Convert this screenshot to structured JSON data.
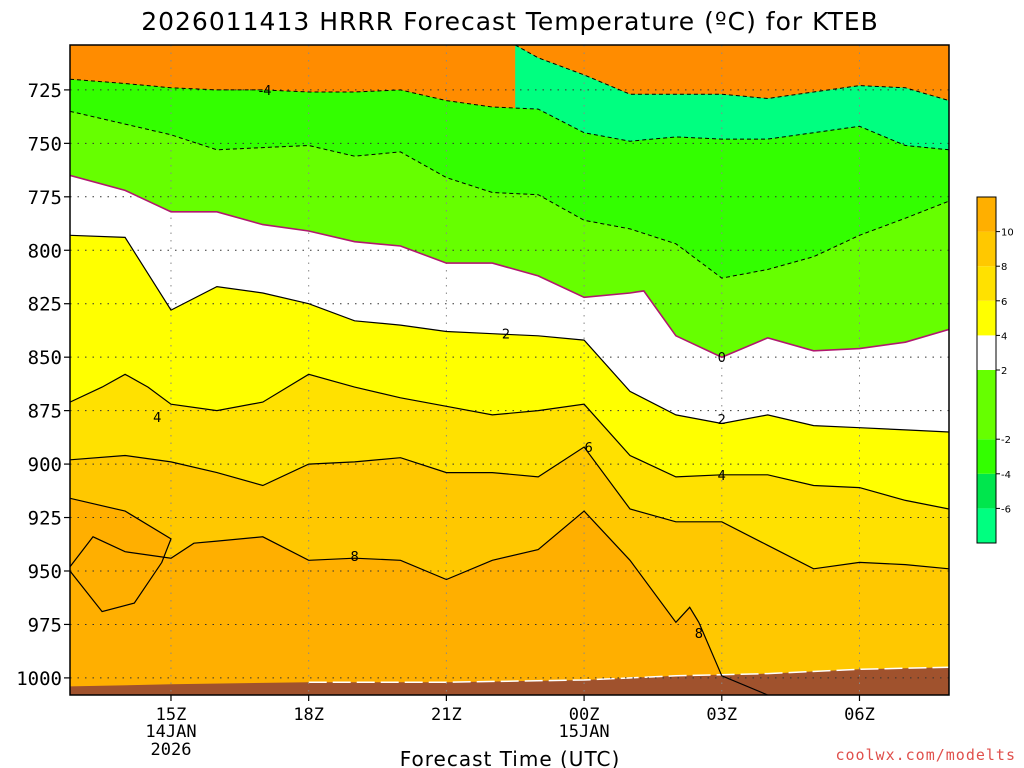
{
  "chart_data": {
    "type": "contour",
    "title": "2026011413 HRRR Forecast Temperature (ºC) for KTEB",
    "xlabel": "Forecast Time (UTC)",
    "ylabel": "",
    "credit": "coolwx.com/modelts",
    "x_ticks": [
      {
        "hour": 2,
        "label": "15Z",
        "label2": "14JAN",
        "label3": "2026"
      },
      {
        "hour": 5,
        "label": "18Z",
        "label2": "",
        "label3": ""
      },
      {
        "hour": 8,
        "label": "21Z",
        "label2": "",
        "label3": ""
      },
      {
        "hour": 11,
        "label": "00Z",
        "label2": "15JAN",
        "label3": ""
      },
      {
        "hour": 14,
        "label": "03Z",
        "label2": "",
        "label3": ""
      },
      {
        "hour": 17,
        "label": "06Z",
        "label2": "",
        "label3": ""
      }
    ],
    "xlim": [
      -0.2,
      18.95
    ],
    "ylim": [
      1008,
      704
    ],
    "y_scale": "linear",
    "y_ticks": [
      725,
      750,
      775,
      800,
      825,
      850,
      875,
      900,
      925,
      950,
      975,
      1000
    ],
    "grid": true,
    "colorbar": {
      "levels": [
        -8,
        -6,
        -4,
        -2,
        2,
        4,
        6,
        8,
        10,
        12
      ],
      "tick_labels": [
        "-6",
        "-4",
        "-2",
        "2",
        "4",
        "6",
        "8",
        "10"
      ],
      "tick_values": [
        -6,
        -4,
        -2,
        2,
        4,
        6,
        8,
        10
      ],
      "colors": [
        "#00ff80",
        "#00e64d",
        "#33ff00",
        "#66ff00",
        "#ffffff",
        "#ffff00",
        "#ffe100",
        "#ffc800",
        "#ffaf00",
        "#ff8c00"
      ]
    },
    "contours": [
      {
        "level": -6,
        "band_color": "#00ff80",
        "style": "dashed",
        "points": [
          [
            9.5,
            704
          ],
          [
            10,
            710
          ],
          [
            11,
            718
          ],
          [
            12,
            727
          ],
          [
            13,
            727
          ],
          [
            14,
            727
          ],
          [
            15,
            729
          ],
          [
            16,
            726
          ],
          [
            17,
            723
          ],
          [
            18,
            724
          ],
          [
            18.95,
            730
          ]
        ]
      },
      {
        "level": -4,
        "band_color": "#33ff00",
        "style": "dashed",
        "points": [
          [
            -0.2,
            720
          ],
          [
            1,
            722
          ],
          [
            2,
            724
          ],
          [
            3,
            725
          ],
          [
            4,
            725
          ],
          [
            5,
            726
          ],
          [
            6,
            726
          ],
          [
            7,
            725
          ],
          [
            8,
            730
          ],
          [
            9,
            733
          ],
          [
            10,
            734
          ],
          [
            11,
            745
          ],
          [
            12,
            749
          ],
          [
            13,
            747
          ],
          [
            14,
            748
          ],
          [
            15,
            748
          ],
          [
            16,
            745
          ],
          [
            17,
            742
          ],
          [
            18,
            751
          ],
          [
            18.95,
            753
          ]
        ]
      },
      {
        "level": -2,
        "band_color": "#66ff00",
        "style": "dashed",
        "points": [
          [
            -0.2,
            735
          ],
          [
            1,
            741
          ],
          [
            2,
            746
          ],
          [
            3,
            753
          ],
          [
            4,
            752
          ],
          [
            5,
            751
          ],
          [
            6,
            756
          ],
          [
            7,
            754
          ],
          [
            8,
            766
          ],
          [
            9,
            773
          ],
          [
            10,
            774
          ],
          [
            11,
            786
          ],
          [
            12,
            790
          ],
          [
            13,
            797
          ],
          [
            14,
            813
          ],
          [
            15,
            809
          ],
          [
            16,
            803
          ],
          [
            17,
            793
          ],
          [
            18,
            785
          ],
          [
            18.95,
            777
          ]
        ]
      },
      {
        "level": 0,
        "band_color": "#ffffff",
        "style": "magenta",
        "label_at": [
          14,
          850
        ],
        "label": "0",
        "points": [
          [
            -0.2,
            765
          ],
          [
            1,
            772
          ],
          [
            2,
            782
          ],
          [
            3,
            782
          ],
          [
            4,
            788
          ],
          [
            5,
            791
          ],
          [
            6,
            796
          ],
          [
            7,
            798
          ],
          [
            8,
            806
          ],
          [
            9,
            806
          ],
          [
            10,
            812
          ],
          [
            11,
            822
          ],
          [
            12,
            820
          ],
          [
            12.3,
            819
          ],
          [
            13,
            840
          ],
          [
            14,
            850
          ],
          [
            15,
            841
          ],
          [
            16,
            847
          ],
          [
            17,
            846
          ],
          [
            18,
            843
          ],
          [
            18.95,
            837
          ]
        ]
      },
      {
        "level": 2,
        "band_color": "#ffff00",
        "style": "solid",
        "label_at": [
          9.3,
          839
        ],
        "label": "2",
        "points": [
          [
            -0.2,
            793
          ],
          [
            1,
            794
          ],
          [
            2,
            828
          ],
          [
            3,
            817
          ],
          [
            4,
            820
          ],
          [
            5,
            825
          ],
          [
            6,
            833
          ],
          [
            7,
            835
          ],
          [
            8,
            838
          ],
          [
            9,
            839
          ],
          [
            10,
            840
          ],
          [
            11,
            842
          ],
          [
            12,
            866
          ],
          [
            13,
            877
          ],
          [
            14,
            881
          ],
          [
            15,
            877
          ],
          [
            16,
            882
          ],
          [
            17,
            883
          ],
          [
            18,
            884
          ],
          [
            18.95,
            885
          ]
        ]
      },
      {
        "level": 4,
        "band_color": "#ffe100",
        "style": "solid",
        "label_at": [
          1.7,
          878
        ],
        "label": "4",
        "points": [
          [
            -0.2,
            871
          ],
          [
            0.5,
            864
          ],
          [
            1,
            858
          ],
          [
            1.5,
            864
          ],
          [
            2,
            872
          ],
          [
            3,
            875
          ],
          [
            4,
            871
          ],
          [
            5,
            858
          ],
          [
            6,
            864
          ],
          [
            7,
            869
          ],
          [
            8,
            873
          ],
          [
            9,
            877
          ],
          [
            10,
            875
          ],
          [
            11,
            872
          ],
          [
            12,
            896
          ],
          [
            13,
            906
          ],
          [
            14,
            905
          ],
          [
            15,
            905
          ],
          [
            16,
            910
          ],
          [
            17,
            911
          ],
          [
            18,
            917
          ],
          [
            18.95,
            921
          ]
        ]
      },
      {
        "level": 6,
        "band_color": "#ffc800",
        "style": "solid",
        "label_at": [
          11.1,
          892
        ],
        "label": "6",
        "points": [
          [
            -0.2,
            898
          ],
          [
            1,
            896
          ],
          [
            2,
            899
          ],
          [
            3,
            904
          ],
          [
            4,
            910
          ],
          [
            5,
            900
          ],
          [
            6,
            899
          ],
          [
            7,
            897
          ],
          [
            8,
            904
          ],
          [
            9,
            904
          ],
          [
            10,
            906
          ],
          [
            11,
            892
          ],
          [
            12,
            921
          ],
          [
            13,
            927
          ],
          [
            14,
            927
          ],
          [
            15,
            938
          ],
          [
            16,
            949
          ],
          [
            17,
            946
          ],
          [
            18,
            947
          ],
          [
            18.95,
            949
          ]
        ]
      },
      {
        "level": 8,
        "band_color": "#ffaf00",
        "style": "solid",
        "label_at": [
          6.0,
          943
        ],
        "label": "8",
        "points": [
          [
            -0.2,
            948
          ],
          [
            0.3,
            934
          ],
          [
            1,
            941
          ],
          [
            2,
            944
          ],
          [
            2.5,
            937
          ],
          [
            3,
            936
          ],
          [
            4,
            934
          ],
          [
            5,
            945
          ],
          [
            6,
            944
          ],
          [
            7,
            945
          ],
          [
            8,
            954
          ],
          [
            9,
            945
          ],
          [
            10,
            940
          ],
          [
            11,
            922
          ],
          [
            12,
            945
          ],
          [
            13,
            974
          ],
          [
            13.3,
            967
          ],
          [
            13.5,
            974
          ],
          [
            14,
            999
          ],
          [
            15,
            1008
          ]
        ]
      },
      {
        "level": 8,
        "band_color": "#ffaf00",
        "style": "solid",
        "points": [
          [
            -0.2,
            916
          ],
          [
            1,
            922
          ],
          [
            2,
            935
          ],
          [
            1.8,
            946
          ],
          [
            1.2,
            965
          ],
          [
            0.5,
            969
          ],
          [
            -0.2,
            950
          ]
        ]
      }
    ],
    "terrain_color": "#a0522d"
  }
}
